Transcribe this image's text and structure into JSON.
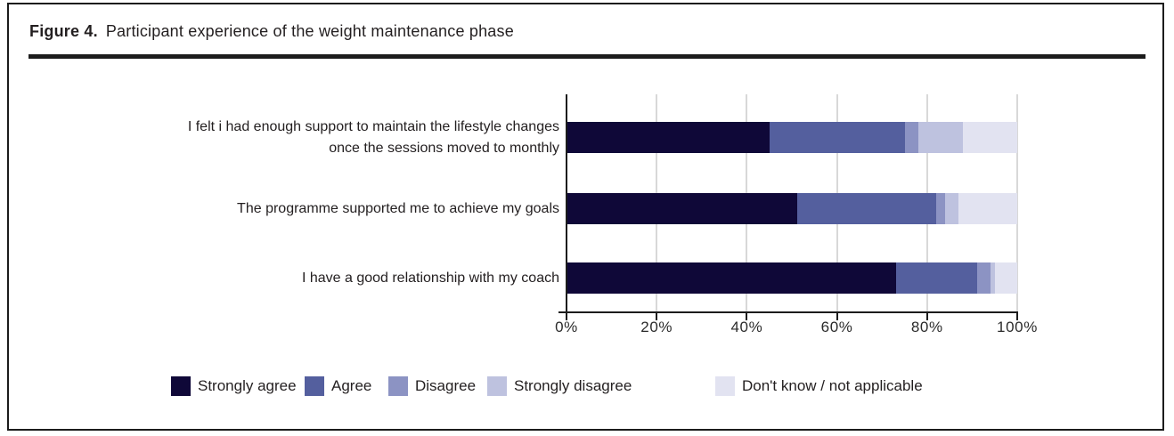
{
  "header": {
    "figure_label": "Figure 4.",
    "title": "Participant experience of the weight maintenance phase"
  },
  "chart_data": {
    "type": "bar",
    "variant": "horizontal-stacked-percentage",
    "title": "Participant experience of the weight maintenance phase",
    "categories": [
      [
        "I felt i had enough support to maintain the lifestyle changes",
        "once the sessions moved to monthly"
      ],
      [
        "The programme supported me to achieve my goals"
      ],
      [
        "I have a good relationship with my coach"
      ]
    ],
    "series": [
      {
        "name": "Strongly agree",
        "color": "#0f0838",
        "values": [
          45,
          51,
          73
        ]
      },
      {
        "name": "Agree",
        "color": "#545f9e",
        "values": [
          30,
          31,
          18
        ]
      },
      {
        "name": "Disagree",
        "color": "#8c93c3",
        "values": [
          3,
          2,
          3
        ]
      },
      {
        "name": "Strongly disagree",
        "color": "#bec2df",
        "values": [
          10,
          3,
          1
        ]
      },
      {
        "name": "Don't know / not applicable",
        "color": "#e2e3f1",
        "values": [
          12,
          13,
          5
        ]
      }
    ],
    "x_ticks": [
      "0%",
      "20%",
      "40%",
      "60%",
      "80%",
      "100%"
    ],
    "xlim": [
      0,
      100
    ],
    "grid": "vertical",
    "legend_position": "bottom"
  },
  "style": {
    "axis_color": "#1c1c1c",
    "gridline_color": "#d8d8d8",
    "text_color": "#231f20"
  }
}
